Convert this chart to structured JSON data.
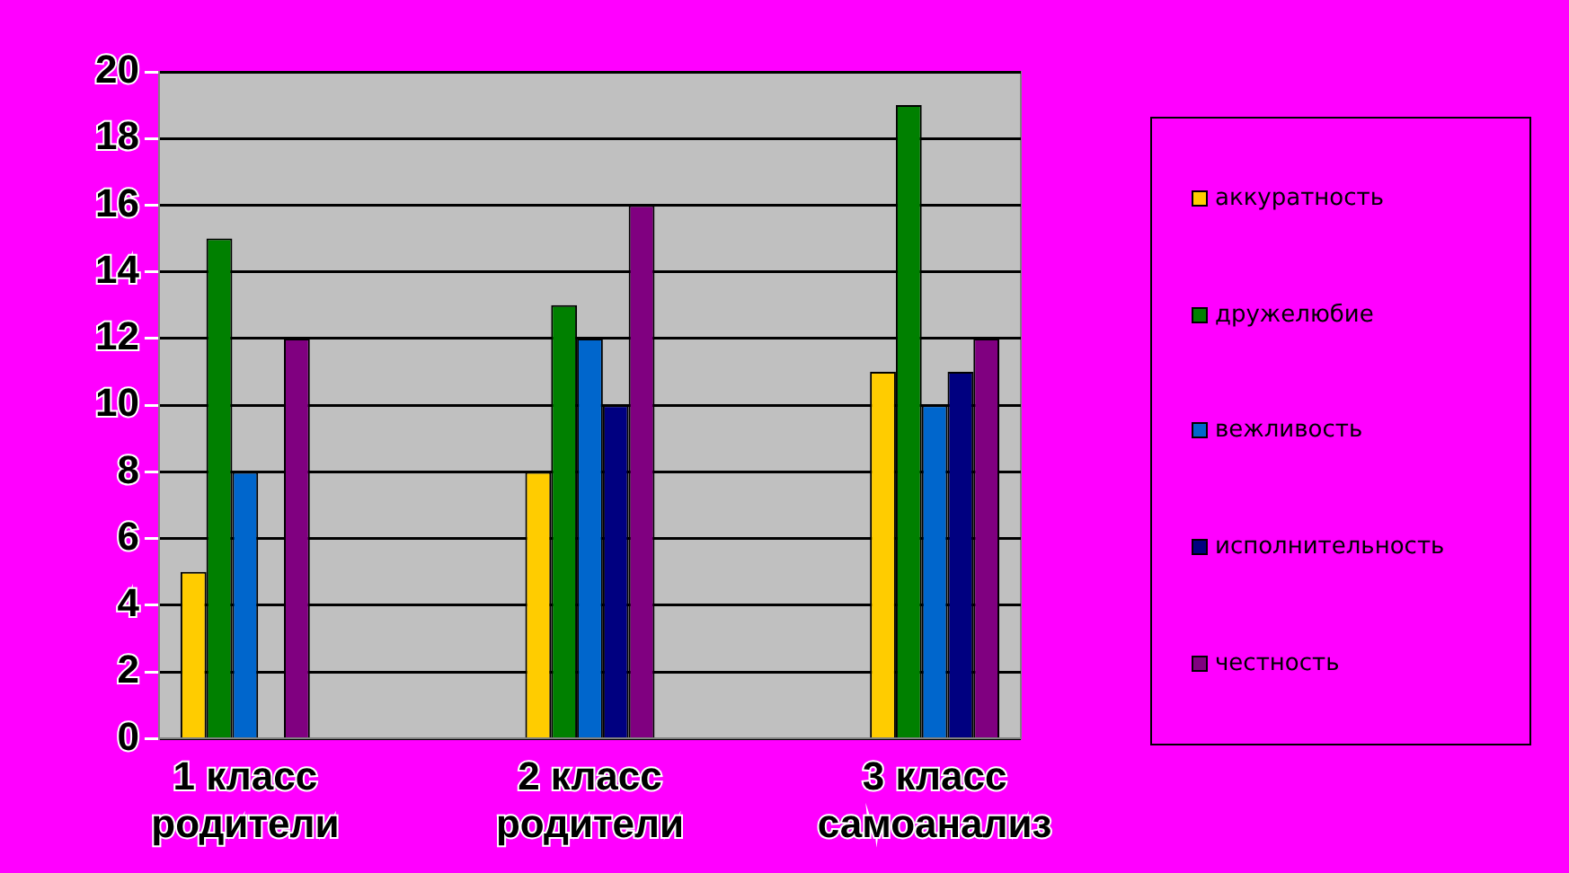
{
  "chart_data": {
    "type": "bar",
    "categories": [
      "1 класс родители",
      null,
      "2 класс родители",
      null,
      "3 класс самоанализ"
    ],
    "series": [
      {
        "name": "аккуратность",
        "color": "#ffcc00",
        "values": [
          5,
          null,
          8,
          null,
          11
        ]
      },
      {
        "name": "дружелюбие",
        "color": "#008000",
        "values": [
          15,
          null,
          13,
          null,
          19
        ]
      },
      {
        "name": "вежливость",
        "color": "#0066cc",
        "values": [
          8,
          null,
          12,
          null,
          10
        ]
      },
      {
        "name": "исполнительность",
        "color": "#000080",
        "values": [
          0,
          null,
          10,
          null,
          11
        ]
      },
      {
        "name": "честность",
        "color": "#800080",
        "values": [
          12,
          null,
          16,
          null,
          12
        ]
      }
    ],
    "ylim": [
      0,
      20
    ],
    "yticks": [
      0,
      2,
      4,
      6,
      8,
      10,
      12,
      14,
      16,
      18,
      20
    ],
    "grid": "y",
    "legend": "right"
  }
}
